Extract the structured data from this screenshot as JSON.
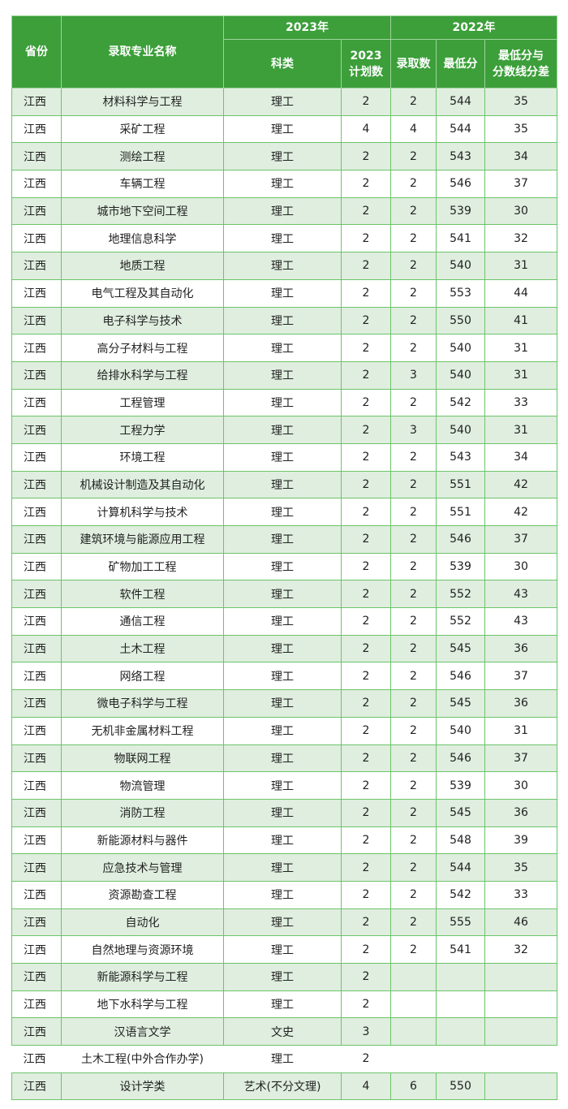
{
  "header": {
    "province": "省份",
    "major": "录取专业名称",
    "y2023": "2023年",
    "y2022": "2022年",
    "category": "科类",
    "plan": "2023\n计划数",
    "admitted": "录取数",
    "min_score": "最低分",
    "diff": "最低分与\n分数线分差"
  },
  "rows": [
    [
      "江西",
      "材料科学与工程",
      "理工",
      "2",
      "2",
      "544",
      "35"
    ],
    [
      "江西",
      "采矿工程",
      "理工",
      "4",
      "4",
      "544",
      "35"
    ],
    [
      "江西",
      "测绘工程",
      "理工",
      "2",
      "2",
      "543",
      "34"
    ],
    [
      "江西",
      "车辆工程",
      "理工",
      "2",
      "2",
      "546",
      "37"
    ],
    [
      "江西",
      "城市地下空间工程",
      "理工",
      "2",
      "2",
      "539",
      "30"
    ],
    [
      "江西",
      "地理信息科学",
      "理工",
      "2",
      "2",
      "541",
      "32"
    ],
    [
      "江西",
      "地质工程",
      "理工",
      "2",
      "2",
      "540",
      "31"
    ],
    [
      "江西",
      "电气工程及其自动化",
      "理工",
      "2",
      "2",
      "553",
      "44"
    ],
    [
      "江西",
      "电子科学与技术",
      "理工",
      "2",
      "2",
      "550",
      "41"
    ],
    [
      "江西",
      "高分子材料与工程",
      "理工",
      "2",
      "2",
      "540",
      "31"
    ],
    [
      "江西",
      "给排水科学与工程",
      "理工",
      "2",
      "3",
      "540",
      "31"
    ],
    [
      "江西",
      "工程管理",
      "理工",
      "2",
      "2",
      "542",
      "33"
    ],
    [
      "江西",
      "工程力学",
      "理工",
      "2",
      "3",
      "540",
      "31"
    ],
    [
      "江西",
      "环境工程",
      "理工",
      "2",
      "2",
      "543",
      "34"
    ],
    [
      "江西",
      "机械设计制造及其自动化",
      "理工",
      "2",
      "2",
      "551",
      "42"
    ],
    [
      "江西",
      "计算机科学与技术",
      "理工",
      "2",
      "2",
      "551",
      "42"
    ],
    [
      "江西",
      "建筑环境与能源应用工程",
      "理工",
      "2",
      "2",
      "546",
      "37"
    ],
    [
      "江西",
      "矿物加工工程",
      "理工",
      "2",
      "2",
      "539",
      "30"
    ],
    [
      "江西",
      "软件工程",
      "理工",
      "2",
      "2",
      "552",
      "43"
    ],
    [
      "江西",
      "通信工程",
      "理工",
      "2",
      "2",
      "552",
      "43"
    ],
    [
      "江西",
      "土木工程",
      "理工",
      "2",
      "2",
      "545",
      "36"
    ],
    [
      "江西",
      "网络工程",
      "理工",
      "2",
      "2",
      "546",
      "37"
    ],
    [
      "江西",
      "微电子科学与工程",
      "理工",
      "2",
      "2",
      "545",
      "36"
    ],
    [
      "江西",
      "无机非金属材料工程",
      "理工",
      "2",
      "2",
      "540",
      "31"
    ],
    [
      "江西",
      "物联网工程",
      "理工",
      "2",
      "2",
      "546",
      "37"
    ],
    [
      "江西",
      "物流管理",
      "理工",
      "2",
      "2",
      "539",
      "30"
    ],
    [
      "江西",
      "消防工程",
      "理工",
      "2",
      "2",
      "545",
      "36"
    ],
    [
      "江西",
      "新能源材料与器件",
      "理工",
      "2",
      "2",
      "548",
      "39"
    ],
    [
      "江西",
      "应急技术与管理",
      "理工",
      "2",
      "2",
      "544",
      "35"
    ],
    [
      "江西",
      "资源勘查工程",
      "理工",
      "2",
      "2",
      "542",
      "33"
    ],
    [
      "江西",
      "自动化",
      "理工",
      "2",
      "2",
      "555",
      "46"
    ],
    [
      "江西",
      "自然地理与资源环境",
      "理工",
      "2",
      "2",
      "541",
      "32"
    ],
    [
      "江西",
      "新能源科学与工程",
      "理工",
      "2",
      "",
      "",
      ""
    ],
    [
      "江西",
      "地下水科学与工程",
      "理工",
      "2",
      "",
      "",
      ""
    ],
    [
      "江西",
      "汉语言文学",
      "文史",
      "3",
      "",
      "",
      ""
    ],
    [
      "江西",
      "土木工程(中外合作办学)",
      "理工",
      "2",
      "",
      "",
      ""
    ],
    [
      "江西",
      "设计学类",
      "艺术(不分文理)",
      "4",
      "6",
      "550",
      ""
    ]
  ],
  "colors": {
    "header_bg": "#3c9f3a",
    "row_alt": "#dfeedf",
    "border": "#6cc46a"
  }
}
